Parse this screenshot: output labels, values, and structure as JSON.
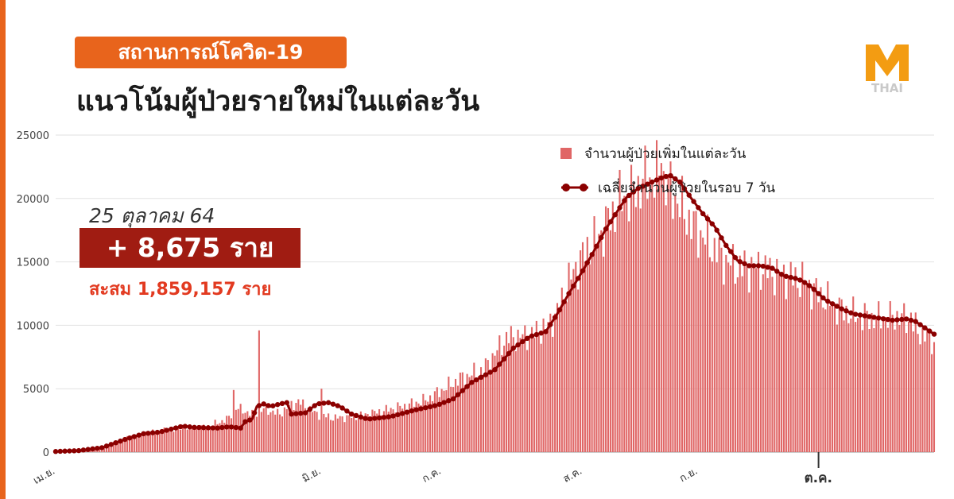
{
  "header": {
    "badge": "สถานการณ์โควิด-19",
    "title": "แนวโน้มผู้ป่วยรายใหม่ในแต่ละวัน",
    "logo_text": "THAI"
  },
  "callout": {
    "date": "25 ตุลาคม 64",
    "new_cases": "+ 8,675 ราย",
    "cumulative": "สะสม 1,859,157 ราย"
  },
  "colors": {
    "accent": "#e8641c",
    "bar": "#e06666",
    "line": "#8b0000",
    "callout_box": "#a01c12",
    "cumulative_text": "#e23a20"
  },
  "chart_data": {
    "type": "bar",
    "title": "แนวโน้มผู้ป่วยรายใหม่ในแต่ละวัน",
    "x_tick_labels": [
      "เม.ย.",
      "มิ.ย.",
      "ก.ค.",
      "ส.ค.",
      "ก.ย.",
      "ต.ค."
    ],
    "y_ticks": [
      0,
      5000,
      10000,
      15000,
      20000,
      25000
    ],
    "ylim": [
      0,
      25000
    ],
    "grid": true,
    "legend_position": "top-right",
    "series": [
      {
        "name": "จำนวนผู้ป่วยเพิ่มในแต่ละวัน",
        "type": "bar",
        "anchors": [
          [
            0,
            50
          ],
          [
            10,
            120
          ],
          [
            20,
            400
          ],
          [
            30,
            1100
          ],
          [
            38,
            1500
          ],
          [
            45,
            1700
          ],
          [
            55,
            1900
          ],
          [
            65,
            2000
          ],
          [
            70,
            2300
          ],
          [
            75,
            2700
          ],
          [
            78,
            3500
          ],
          [
            85,
            3000
          ],
          [
            88,
            3200
          ],
          [
            90,
            3400
          ],
          [
            97,
            3000
          ],
          [
            100,
            3500
          ],
          [
            105,
            4000
          ],
          [
            113,
            3000
          ],
          [
            120,
            2700
          ],
          [
            130,
            2800
          ],
          [
            140,
            3200
          ],
          [
            150,
            3600
          ],
          [
            160,
            4100
          ],
          [
            168,
            5000
          ],
          [
            175,
            5800
          ],
          [
            185,
            6500
          ],
          [
            195,
            9000
          ],
          [
            205,
            9200
          ],
          [
            212,
            9800
          ],
          [
            217,
            11000
          ],
          [
            222,
            13500
          ],
          [
            228,
            15500
          ],
          [
            235,
            17000
          ],
          [
            240,
            18500
          ],
          [
            245,
            20000
          ],
          [
            250,
            20500
          ],
          [
            255,
            21500
          ],
          [
            260,
            21800
          ],
          [
            265,
            21000
          ],
          [
            270,
            19500
          ],
          [
            275,
            18000
          ],
          [
            280,
            17000
          ],
          [
            285,
            16000
          ],
          [
            290,
            15000
          ],
          [
            296,
            14500
          ],
          [
            305,
            14500
          ],
          [
            312,
            14000
          ],
          [
            318,
            13800
          ],
          [
            323,
            13500
          ],
          [
            330,
            12500
          ],
          [
            337,
            11500
          ],
          [
            345,
            10800
          ],
          [
            355,
            10500
          ],
          [
            365,
            10700
          ],
          [
            370,
            10300
          ],
          [
            373,
            9500
          ],
          [
            377,
            9100
          ],
          [
            380,
            8675
          ]
        ],
        "spikes": [
          [
            77,
            4900
          ],
          [
            88,
            9600
          ],
          [
            115,
            5000
          ],
          [
            262,
            22800
          ],
          [
            298,
            15900
          ],
          [
            370,
            11000
          ]
        ]
      },
      {
        "name": "เฉลี่ยจำนวนผู้ป่วยในรอบ 7 วัน",
        "type": "line",
        "points": [
          [
            0,
            50
          ],
          [
            10,
            120
          ],
          [
            20,
            350
          ],
          [
            30,
            1000
          ],
          [
            38,
            1450
          ],
          [
            45,
            1580
          ],
          [
            55,
            2050
          ],
          [
            60,
            1950
          ],
          [
            70,
            1900
          ],
          [
            75,
            2000
          ],
          [
            80,
            1900
          ],
          [
            82,
            2400
          ],
          [
            85,
            2600
          ],
          [
            87,
            3600
          ],
          [
            90,
            3800
          ],
          [
            93,
            3600
          ],
          [
            97,
            3800
          ],
          [
            100,
            3900
          ],
          [
            102,
            3000
          ],
          [
            108,
            3100
          ],
          [
            113,
            3800
          ],
          [
            118,
            3900
          ],
          [
            123,
            3600
          ],
          [
            128,
            3000
          ],
          [
            135,
            2600
          ],
          [
            145,
            2800
          ],
          [
            155,
            3300
          ],
          [
            165,
            3700
          ],
          [
            172,
            4200
          ],
          [
            180,
            5500
          ],
          [
            190,
            6500
          ],
          [
            198,
            8200
          ],
          [
            205,
            9100
          ],
          [
            212,
            9500
          ],
          [
            217,
            10900
          ],
          [
            222,
            12500
          ],
          [
            228,
            14300
          ],
          [
            233,
            15900
          ],
          [
            238,
            17600
          ],
          [
            243,
            19000
          ],
          [
            247,
            20100
          ],
          [
            252,
            20800
          ],
          [
            258,
            21300
          ],
          [
            263,
            21700
          ],
          [
            266,
            21800
          ],
          [
            270,
            21300
          ],
          [
            275,
            20000
          ],
          [
            280,
            18800
          ],
          [
            285,
            17800
          ],
          [
            290,
            16300
          ],
          [
            295,
            15100
          ],
          [
            300,
            14700
          ],
          [
            305,
            14700
          ],
          [
            310,
            14500
          ],
          [
            315,
            13900
          ],
          [
            320,
            13700
          ],
          [
            323,
            13500
          ],
          [
            327,
            13000
          ],
          [
            333,
            12000
          ],
          [
            340,
            11300
          ],
          [
            345,
            10900
          ],
          [
            355,
            10600
          ],
          [
            362,
            10400
          ],
          [
            368,
            10500
          ],
          [
            372,
            10300
          ],
          [
            376,
            9800
          ],
          [
            380,
            9300
          ]
        ]
      }
    ]
  }
}
